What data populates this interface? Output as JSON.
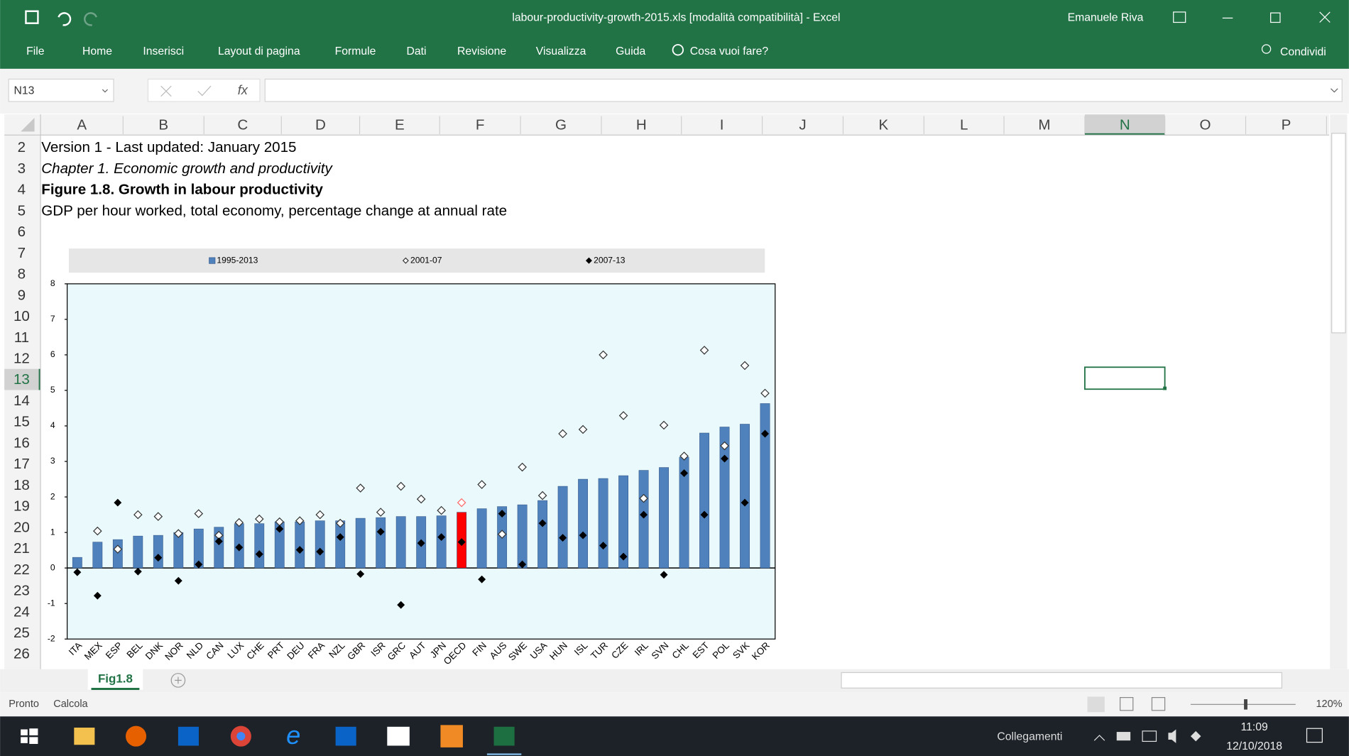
{
  "title_bar": {
    "title": "labour-productivity-growth-2015.xls  [modalità compatibilità]  -  Excel",
    "user": "Emanuele Riva"
  },
  "ribbon": {
    "tabs": [
      "File",
      "Home",
      "Inserisci",
      "Layout di pagina",
      "Formule",
      "Dati",
      "Revisione",
      "Visualizza",
      "Guida"
    ],
    "search": "Cosa vuoi fare?",
    "share": "Condividi"
  },
  "formula_bar": {
    "name_box": "N13",
    "function_label": "fx"
  },
  "columns": [
    "A",
    "B",
    "C",
    "D",
    "E",
    "F",
    "G",
    "H",
    "I",
    "J",
    "K",
    "L",
    "M",
    "N",
    "O",
    "P"
  ],
  "rows": [
    2,
    3,
    4,
    5,
    6,
    7,
    8,
    9,
    10,
    11,
    12,
    13,
    14,
    15,
    16,
    17,
    18,
    19,
    20,
    21,
    22,
    23,
    24,
    25,
    26
  ],
  "cells": {
    "A2": {
      "text": "Version 1 - Last updated: January 2015",
      "style": "normal"
    },
    "A3": {
      "text": "Chapter 1. Economic growth and productivity",
      "style": "italic"
    },
    "A4": {
      "text": "Figure 1.8. Growth in labour productivity",
      "style": "bold"
    },
    "A5": {
      "text": "GDP per hour worked, total economy, percentage change at annual rate",
      "style": "normal"
    }
  },
  "chart_data": {
    "type": "bar",
    "categories": [
      "ITA",
      "MEX",
      "ESP",
      "BEL",
      "DNK",
      "NOR",
      "NLD",
      "CAN",
      "LUX",
      "CHE",
      "PRT",
      "DEU",
      "FRA",
      "NZL",
      "GBR",
      "ISR",
      "GRC",
      "AUT",
      "JPN",
      "OECD",
      "FIN",
      "AUS",
      "SWE",
      "USA",
      "HUN",
      "ISL",
      "TUR",
      "CZE",
      "IRL",
      "SVN",
      "CHL",
      "EST",
      "POL",
      "SVK",
      "KOR"
    ],
    "series": [
      {
        "name": "1995-2013",
        "marker": "bar",
        "color": "#4f81bd",
        "colors": [
          "#4f81bd",
          "#4f81bd",
          "#4f81bd",
          "#4f81bd",
          "#4f81bd",
          "#4f81bd",
          "#4f81bd",
          "#4f81bd",
          "#4f81bd",
          "#4f81bd",
          "#4f81bd",
          "#4f81bd",
          "#4f81bd",
          "#4f81bd",
          "#4f81bd",
          "#4f81bd",
          "#4f81bd",
          "#4f81bd",
          "#4f81bd",
          "#ff0000",
          "#4f81bd",
          "#4f81bd",
          "#4f81bd",
          "#4f81bd",
          "#4f81bd",
          "#4f81bd",
          "#4f81bd",
          "#4f81bd",
          "#4f81bd",
          "#4f81bd",
          "#4f81bd",
          "#4f81bd",
          "#4f81bd",
          "#4f81bd",
          "#4f81bd"
        ],
        "values": [
          0.3,
          0.73,
          0.8,
          0.9,
          0.92,
          1.0,
          1.1,
          1.15,
          1.25,
          1.25,
          1.3,
          1.3,
          1.33,
          1.33,
          1.4,
          1.42,
          1.45,
          1.45,
          1.47,
          1.57,
          1.67,
          1.73,
          1.78,
          1.9,
          2.3,
          2.5,
          2.52,
          2.6,
          2.75,
          2.83,
          3.12,
          3.8,
          3.97,
          4.05,
          4.63
        ]
      },
      {
        "name": "2001-07",
        "marker": "diamond-open",
        "color": "#333333",
        "colors": [
          "#333333",
          "#333333",
          "#333333",
          "#333333",
          "#333333",
          "#333333",
          "#333333",
          "#333333",
          "#333333",
          "#333333",
          "#333333",
          "#333333",
          "#333333",
          "#333333",
          "#333333",
          "#333333",
          "#333333",
          "#333333",
          "#333333",
          "#ff6666",
          "#333333",
          "#333333",
          "#333333",
          "#333333",
          "#333333",
          "#333333",
          "#333333",
          "#333333",
          "#333333",
          "#333333",
          "#333333",
          "#333333",
          "#333333",
          "#333333",
          "#333333"
        ],
        "values": [
          null,
          1.04,
          0.53,
          1.5,
          1.45,
          0.97,
          1.53,
          0.92,
          1.28,
          1.38,
          1.3,
          1.33,
          1.5,
          1.26,
          2.25,
          1.57,
          2.3,
          1.94,
          1.62,
          1.84,
          2.35,
          0.95,
          2.84,
          2.04,
          3.78,
          3.9,
          6.0,
          4.29,
          1.96,
          4.02,
          3.15,
          6.13,
          3.44,
          5.7,
          4.92
        ]
      },
      {
        "name": "2007-13",
        "marker": "diamond-filled",
        "color": "#000000",
        "values": [
          -0.12,
          -0.78,
          1.84,
          -0.1,
          0.29,
          -0.36,
          0.1,
          0.75,
          0.58,
          0.39,
          1.1,
          0.51,
          0.46,
          0.87,
          -0.17,
          1.02,
          -1.04,
          0.7,
          0.87,
          0.73,
          -0.32,
          1.53,
          0.1,
          1.26,
          0.85,
          0.92,
          0.63,
          0.32,
          1.5,
          -0.19,
          2.67,
          1.5,
          3.08,
          1.84,
          3.78
        ]
      }
    ],
    "ylim": [
      -2,
      8
    ],
    "yticks": [
      -2,
      -1,
      0,
      1,
      2,
      3,
      4,
      5,
      6,
      7,
      8
    ],
    "legend": "top",
    "plot_background": "#eafafc"
  },
  "sheet_tabs": [
    "Fig1.8"
  ],
  "status_bar": {
    "left": [
      "Pronto",
      "Calcola"
    ],
    "zoom": "120%"
  },
  "taskbar": {
    "toolbar": "Collegamenti",
    "time": "11:09",
    "date": "12/10/2018"
  }
}
